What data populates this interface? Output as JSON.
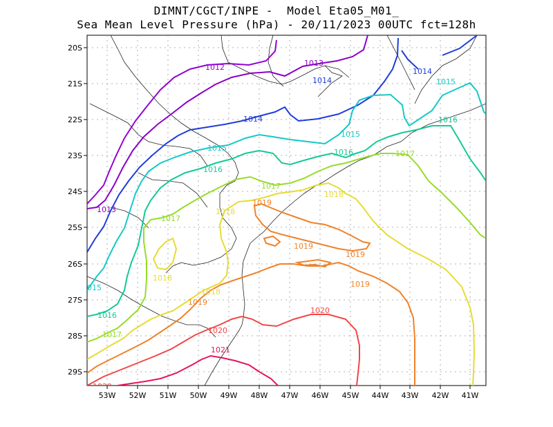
{
  "title_line1": "DIMNT/CGCT/INPE -  Model Eta05_M01_",
  "title_line2": "Sea Mean Level Pressure (hPa) - 20/11/2023 00UTC fct=128h",
  "lon_labels": [
    "53W",
    "52W",
    "51W",
    "50W",
    "49W",
    "48W",
    "47W",
    "46W",
    "45W",
    "44W",
    "43W",
    "42W",
    "41W"
  ],
  "lat_labels": [
    "20S",
    "21S",
    "22S",
    "23S",
    "24S",
    "25S",
    "26S",
    "27S",
    "28S",
    "29S"
  ],
  "contours": [
    {
      "value": "1012",
      "color": "#9400d3",
      "label": "1012"
    },
    {
      "value": "1013",
      "color": "#8a00c8",
      "label": "1013"
    },
    {
      "value": "1014",
      "color": "#1e3cdc",
      "label": "1014"
    },
    {
      "value": "1015",
      "color": "#14c8c8",
      "label": "1015"
    },
    {
      "value": "1016",
      "color": "#14c896",
      "label": "1016"
    },
    {
      "value": "1017",
      "color": "#96dc28",
      "label": "1017"
    },
    {
      "value": "1018",
      "color": "#e6dc32",
      "label": "1018"
    },
    {
      "value": "1019",
      "color": "#f08228",
      "label": "1019"
    },
    {
      "value": "1020",
      "color": "#f04646",
      "label": "1020"
    },
    {
      "value": "1021",
      "color": "#e6145a",
      "label": "1021"
    }
  ],
  "extra_labels": [
    "015",
    "1020"
  ]
}
